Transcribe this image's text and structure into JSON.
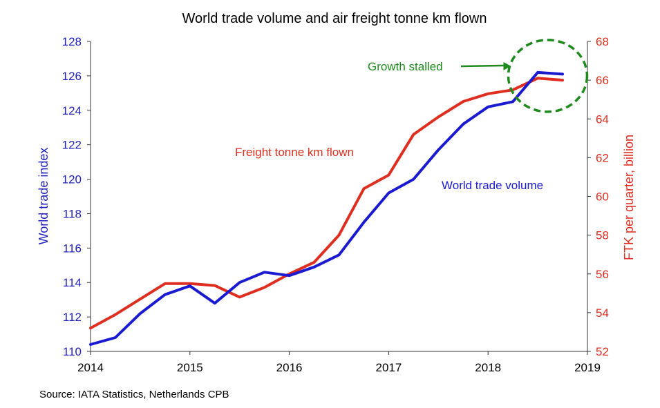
{
  "chart_data": {
    "type": "line",
    "title": "World trade volume and air freight tonne km flown",
    "source": "Source: IATA Statistics, Netherlands CPB",
    "x_ticks": [
      "2014",
      "2015",
      "2016",
      "2017",
      "2018",
      "2019"
    ],
    "xlim": [
      2014,
      2019
    ],
    "y_left": {
      "label": "World trade index",
      "range": [
        110,
        128
      ],
      "ticks": [
        110,
        112,
        114,
        116,
        118,
        120,
        122,
        124,
        126,
        128
      ],
      "color": "#2222bb"
    },
    "y_right": {
      "label": "FTK per quarter, billion",
      "range": [
        52,
        68
      ],
      "ticks": [
        52,
        54,
        56,
        58,
        60,
        62,
        64,
        66,
        68
      ],
      "color": "#dd2e1f"
    },
    "grid": false,
    "series": [
      {
        "name": "World trade volume",
        "axis": "left",
        "color": "#1a1ad1",
        "x": [
          2014.0,
          2014.25,
          2014.5,
          2014.75,
          2015.0,
          2015.25,
          2015.5,
          2015.75,
          2016.0,
          2016.25,
          2016.5,
          2016.75,
          2017.0,
          2017.25,
          2017.5,
          2017.75,
          2018.0,
          2018.25,
          2018.5,
          2018.75
        ],
        "values": [
          110.4,
          110.8,
          112.2,
          113.3,
          113.8,
          112.8,
          114.0,
          114.6,
          114.4,
          114.9,
          115.6,
          117.5,
          119.2,
          120.0,
          121.7,
          123.2,
          124.2,
          124.5,
          126.2,
          126.1
        ]
      },
      {
        "name": "Freight tonne km flown",
        "axis": "right",
        "color": "#dd2e1f",
        "x": [
          2014.0,
          2014.25,
          2014.5,
          2014.75,
          2015.0,
          2015.25,
          2015.5,
          2015.75,
          2016.0,
          2016.25,
          2016.5,
          2016.75,
          2017.0,
          2017.25,
          2017.5,
          2017.75,
          2018.0,
          2018.25,
          2018.5,
          2018.75
        ],
        "values": [
          53.2,
          53.9,
          54.7,
          55.5,
          55.5,
          55.4,
          54.8,
          55.3,
          56.0,
          56.6,
          58.0,
          60.4,
          61.1,
          63.2,
          64.1,
          64.9,
          65.3,
          65.5,
          66.1,
          66.0
        ]
      }
    ],
    "annotation": {
      "text": "Growth stalled",
      "color": "#1e8a1e",
      "circle_center": [
        2018.6,
        126.0
      ]
    }
  }
}
